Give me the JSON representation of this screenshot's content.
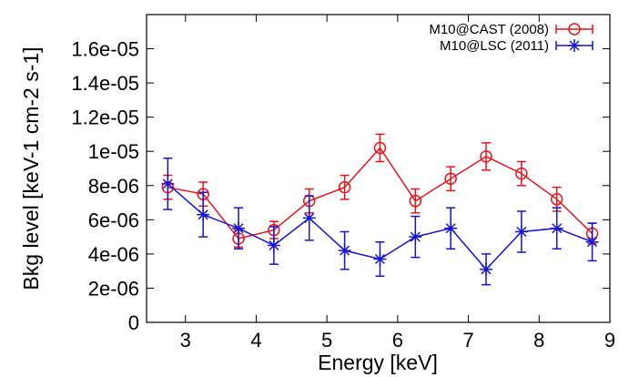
{
  "chart_data": {
    "type": "scatter",
    "xlabel": "Energy [keV]",
    "ylabel": "Bkg level [keV-1 cm-2 s-1]",
    "xlim": [
      2.45,
      9.0
    ],
    "ylim": [
      0,
      1.8e-05
    ],
    "xticks": [
      3,
      4,
      5,
      6,
      7,
      8,
      9
    ],
    "xtick_labels": [
      "3",
      "4",
      "5",
      "6",
      "7",
      "8",
      "9"
    ],
    "yticks": [
      0,
      2e-06,
      4e-06,
      6e-06,
      8e-06,
      1e-05,
      1.2e-05,
      1.4e-05,
      1.6e-05
    ],
    "ytick_labels": [
      "0",
      "2e-06",
      "4e-06",
      "6e-06",
      "8e-06",
      "1e-05",
      "1.2e-05",
      "1.4e-05",
      "1.6e-05"
    ],
    "grid": false,
    "legend_position": "top-right",
    "x": [
      2.75,
      3.25,
      3.75,
      4.25,
      4.75,
      5.25,
      5.75,
      6.25,
      6.75,
      7.25,
      7.75,
      8.25,
      8.75
    ],
    "series": [
      {
        "name": "M10@CAST (2008)",
        "color": "#e8141c",
        "marker": "circle",
        "values": [
          7.9e-06,
          7.5e-06,
          4.9e-06,
          5.4e-06,
          7.1e-06,
          7.9e-06,
          1.02e-05,
          7.1e-06,
          8.4e-06,
          9.7e-06,
          8.7e-06,
          7.2e-06,
          5.2e-06
        ],
        "errors": [
          7e-07,
          7e-07,
          5e-07,
          5e-07,
          7e-07,
          7e-07,
          8e-07,
          7e-07,
          7e-07,
          8e-07,
          7e-07,
          7e-07,
          6e-07
        ]
      },
      {
        "name": "M10@LSC (2011)",
        "color": "#1414d2",
        "marker": "star",
        "values": [
          8.1e-06,
          6.3e-06,
          5.5e-06,
          4.5e-06,
          6.1e-06,
          4.2e-06,
          3.7e-06,
          5e-06,
          5.5e-06,
          3.1e-06,
          5.3e-06,
          5.5e-06,
          4.7e-06
        ],
        "errors": [
          1.5e-06,
          1.3e-06,
          1.2e-06,
          1.1e-06,
          1.3e-06,
          1.1e-06,
          1e-06,
          1.2e-06,
          1.2e-06,
          9e-07,
          1.2e-06,
          1.2e-06,
          1.1e-06
        ]
      }
    ]
  }
}
